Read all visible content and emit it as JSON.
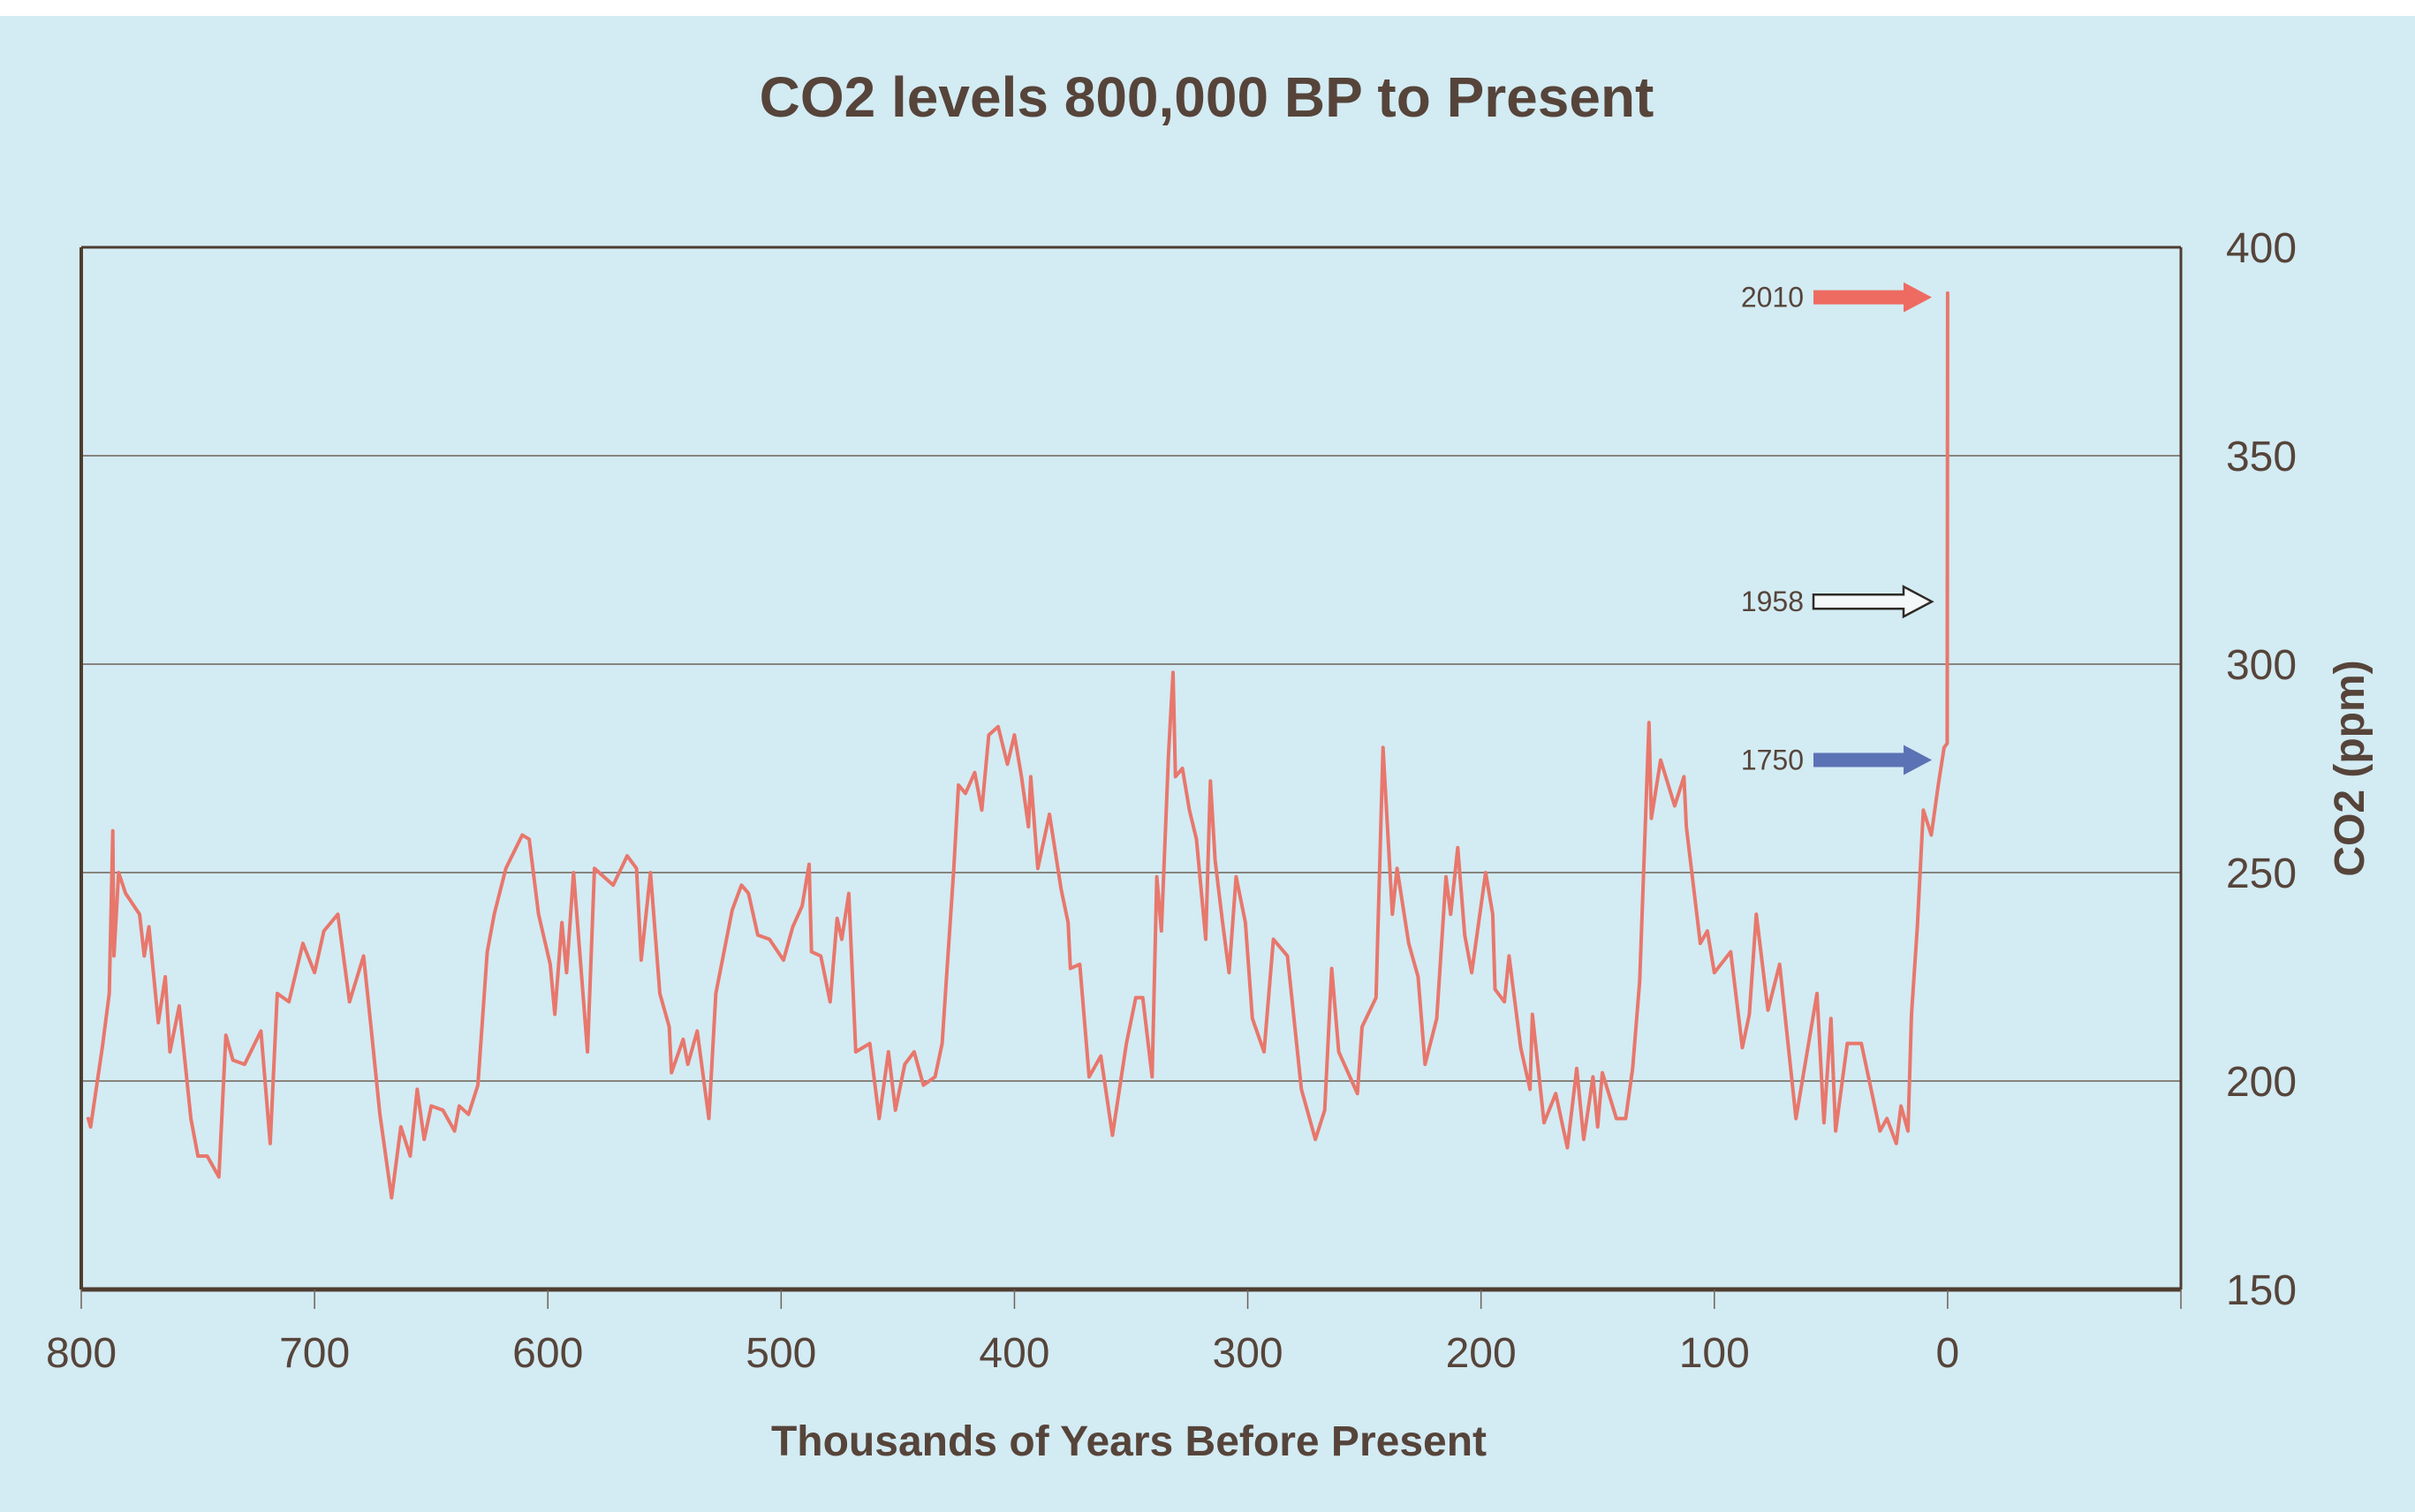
{
  "chart_data": {
    "type": "line",
    "title": "CO2 levels 800,000 BP to Present",
    "xlabel": "Thousands of Years Before Present",
    "ylabel": "CO2 (ppm)",
    "xlim": [
      800,
      -100
    ],
    "ylim": [
      150,
      400
    ],
    "x_ticks": [
      800,
      700,
      600,
      500,
      400,
      300,
      200,
      100,
      0
    ],
    "x_tick_labels": [
      "800",
      "700",
      "600",
      "500",
      "400",
      "300",
      "200",
      "100",
      "0"
    ],
    "y_ticks": [
      150,
      200,
      250,
      300,
      350,
      400
    ],
    "y_tick_labels": [
      "150",
      "200",
      "250",
      "300",
      "350",
      "400"
    ],
    "y_axis_side": "right",
    "grid": "horizontal",
    "legend": null,
    "series": [
      {
        "name": "CO2 (ppm)",
        "color": "#e8776c",
        "points": [
          [
            797,
            191
          ],
          [
            796,
            189
          ],
          [
            791,
            208
          ],
          [
            788,
            221
          ],
          [
            786.5,
            260
          ],
          [
            786,
            230
          ],
          [
            784,
            250
          ],
          [
            781,
            245
          ],
          [
            775,
            240
          ],
          [
            773,
            230
          ],
          [
            771,
            237
          ],
          [
            767,
            214
          ],
          [
            764,
            225
          ],
          [
            762,
            207
          ],
          [
            758,
            218
          ],
          [
            753,
            191
          ],
          [
            750,
            182
          ],
          [
            746,
            182
          ],
          [
            741,
            177
          ],
          [
            738,
            211
          ],
          [
            735,
            205
          ],
          [
            730,
            204
          ],
          [
            723,
            212
          ],
          [
            719,
            185
          ],
          [
            716,
            221
          ],
          [
            711,
            219
          ],
          [
            705,
            233
          ],
          [
            700,
            226
          ],
          [
            696,
            236
          ],
          [
            690,
            240
          ],
          [
            685,
            219
          ],
          [
            679,
            230
          ],
          [
            676,
            214
          ],
          [
            672,
            192
          ],
          [
            667,
            172
          ],
          [
            663,
            189
          ],
          [
            659,
            182
          ],
          [
            656,
            198
          ],
          [
            653,
            186
          ],
          [
            650,
            194
          ],
          [
            645,
            193
          ],
          [
            640,
            188
          ],
          [
            638,
            194
          ],
          [
            634,
            192
          ],
          [
            630,
            199
          ],
          [
            626,
            231
          ],
          [
            623,
            240
          ],
          [
            618,
            251
          ],
          [
            611,
            259
          ],
          [
            608,
            258
          ],
          [
            604,
            240
          ],
          [
            599,
            228
          ],
          [
            597,
            216
          ],
          [
            594,
            238
          ],
          [
            592,
            226
          ],
          [
            589,
            250
          ],
          [
            583,
            207
          ],
          [
            580,
            251
          ],
          [
            572,
            247
          ],
          [
            566,
            254
          ],
          [
            562,
            251
          ],
          [
            560,
            229
          ],
          [
            556,
            250
          ],
          [
            552,
            221
          ],
          [
            548,
            213
          ],
          [
            547,
            202
          ],
          [
            542,
            210
          ],
          [
            540,
            204
          ],
          [
            536,
            212
          ],
          [
            531,
            191
          ],
          [
            528,
            221
          ],
          [
            521,
            241
          ],
          [
            517,
            247
          ],
          [
            514,
            245
          ],
          [
            510,
            235
          ],
          [
            505,
            234
          ],
          [
            499,
            229
          ],
          [
            495,
            237
          ],
          [
            491,
            242
          ],
          [
            488,
            252
          ],
          [
            487,
            231
          ],
          [
            483,
            230
          ],
          [
            479,
            219
          ],
          [
            476,
            239
          ],
          [
            474,
            234
          ],
          [
            471,
            245
          ],
          [
            468,
            207
          ],
          [
            462,
            209
          ],
          [
            458,
            191
          ],
          [
            454,
            207
          ],
          [
            451,
            193
          ],
          [
            447,
            204
          ],
          [
            443,
            207
          ],
          [
            439,
            199
          ],
          [
            434,
            201
          ],
          [
            431,
            209
          ],
          [
            429,
            226
          ],
          [
            426,
            251
          ],
          [
            424,
            271
          ],
          [
            421,
            269
          ],
          [
            417,
            274
          ],
          [
            414,
            265
          ],
          [
            411,
            283
          ],
          [
            407,
            285
          ],
          [
            403,
            276
          ],
          [
            400,
            283
          ],
          [
            397,
            273
          ],
          [
            394,
            261
          ],
          [
            393,
            273
          ],
          [
            390,
            251
          ],
          [
            385,
            264
          ],
          [
            380,
            246
          ],
          [
            377,
            238
          ],
          [
            376,
            227
          ],
          [
            372,
            228
          ],
          [
            368,
            201
          ],
          [
            363,
            206
          ],
          [
            358,
            187
          ],
          [
            352,
            209
          ],
          [
            348,
            220
          ],
          [
            345,
            220
          ],
          [
            341,
            201
          ],
          [
            339,
            249
          ],
          [
            337,
            236
          ],
          [
            334,
            278
          ],
          [
            332,
            298
          ],
          [
            331,
            273
          ],
          [
            328,
            275
          ],
          [
            325,
            265
          ],
          [
            322,
            258
          ],
          [
            318,
            234
          ],
          [
            316,
            272
          ],
          [
            314,
            253
          ],
          [
            311,
            239
          ],
          [
            308,
            226
          ],
          [
            305,
            249
          ],
          [
            301,
            238
          ],
          [
            298,
            215
          ],
          [
            293,
            207
          ],
          [
            289,
            234
          ],
          [
            283,
            230
          ],
          [
            277,
            198
          ],
          [
            271,
            186
          ],
          [
            267,
            193
          ],
          [
            264,
            227
          ],
          [
            261,
            207
          ],
          [
            253,
            197
          ],
          [
            251,
            213
          ],
          [
            245,
            220
          ],
          [
            242,
            280
          ],
          [
            238,
            240
          ],
          [
            236,
            251
          ],
          [
            231,
            233
          ],
          [
            227,
            225
          ],
          [
            224,
            204
          ],
          [
            219,
            215
          ],
          [
            215,
            249
          ],
          [
            213,
            240
          ],
          [
            210,
            256
          ],
          [
            207,
            235
          ],
          [
            204,
            226
          ],
          [
            198,
            250
          ],
          [
            195,
            240
          ],
          [
            194,
            222
          ],
          [
            190,
            219
          ],
          [
            188,
            230
          ],
          [
            183,
            208
          ],
          [
            179,
            198
          ],
          [
            178,
            216
          ],
          [
            173,
            190
          ],
          [
            168,
            197
          ],
          [
            163,
            184
          ],
          [
            159,
            203
          ],
          [
            156,
            186
          ],
          [
            152,
            201
          ],
          [
            150,
            189
          ],
          [
            148,
            202
          ],
          [
            142,
            191
          ],
          [
            138,
            191
          ],
          [
            135,
            203
          ],
          [
            132,
            224
          ],
          [
            128,
            286
          ],
          [
            127,
            263
          ],
          [
            123,
            277
          ],
          [
            117,
            266
          ],
          [
            113,
            273
          ],
          [
            112,
            261
          ],
          [
            106,
            233
          ],
          [
            103,
            236
          ],
          [
            100,
            226
          ],
          [
            93,
            231
          ],
          [
            88,
            208
          ],
          [
            85,
            216
          ],
          [
            82,
            240
          ],
          [
            77,
            217
          ],
          [
            72,
            228
          ],
          [
            65,
            191
          ],
          [
            56,
            221
          ],
          [
            53,
            190
          ],
          [
            50,
            215
          ],
          [
            48,
            188
          ],
          [
            43,
            209
          ],
          [
            37,
            209
          ],
          [
            29,
            188
          ],
          [
            26,
            191
          ],
          [
            22,
            185
          ],
          [
            20,
            194
          ],
          [
            17,
            188
          ],
          [
            15.5,
            216
          ],
          [
            13,
            237
          ],
          [
            10.4,
            265
          ],
          [
            7,
            259
          ],
          [
            4,
            271
          ],
          [
            1.5,
            280
          ],
          [
            0.2,
            281
          ],
          [
            0,
            389
          ]
        ]
      }
    ],
    "annotations": [
      {
        "label": "2010",
        "ppm": 388,
        "arrow_style": "filled",
        "color": "#ee6b61"
      },
      {
        "label": "1958",
        "ppm": 315,
        "arrow_style": "outline",
        "color": "#2e2a26"
      },
      {
        "label": "1750",
        "ppm": 277,
        "arrow_style": "filled",
        "color": "#5b72b4"
      }
    ]
  },
  "colors": {
    "background": "#d3ebf3",
    "frame": "#4e3d31",
    "gridline": "#6e6257",
    "text": "#56443a"
  }
}
